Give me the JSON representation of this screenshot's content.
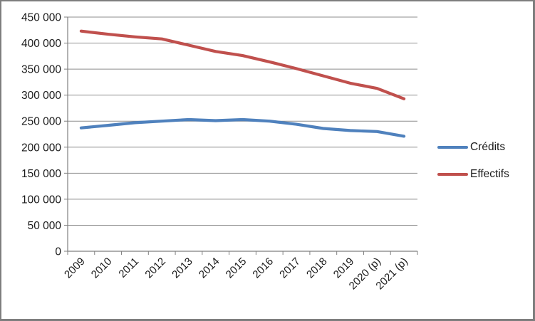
{
  "chart_data": {
    "type": "line",
    "title": "",
    "categories": [
      "2009",
      "2010",
      "2011",
      "2012",
      "2013",
      "2014",
      "2015",
      "2016",
      "2017",
      "2018",
      "2019",
      "2020 (p)",
      "2021 (p)"
    ],
    "series": [
      {
        "name": "Crédits",
        "color": "#4F81BD",
        "values": [
          237000,
          242000,
          247000,
          250000,
          253000,
          251000,
          253000,
          250000,
          244000,
          236000,
          232000,
          230000,
          221000
        ]
      },
      {
        "name": "Effectifs",
        "color": "#C0504D",
        "values": [
          423000,
          417000,
          412000,
          408000,
          396000,
          384000,
          376000,
          364000,
          351000,
          337000,
          323000,
          313000,
          293000
        ]
      }
    ],
    "ylim": [
      0,
      450000
    ],
    "ytick_step": 50000,
    "ytick_values": [
      0,
      50000,
      100000,
      150000,
      200000,
      250000,
      300000,
      350000,
      400000,
      450000
    ],
    "ytick_labels": [
      "0",
      "50 000",
      "100 000",
      "150 000",
      "200 000",
      "250 000",
      "300 000",
      "350 000",
      "400 000",
      "450 000"
    ],
    "grid": true,
    "legend_position": "right",
    "style": {
      "gridline_color": "#8e8e8e",
      "axis_color": "#7f7f7f",
      "tick_color": "#7f7f7f",
      "text_color": "#1a1a1a",
      "background_color": "#ffffff",
      "frame_border_color": "#7e7e7e",
      "line_width": 4.2
    }
  }
}
